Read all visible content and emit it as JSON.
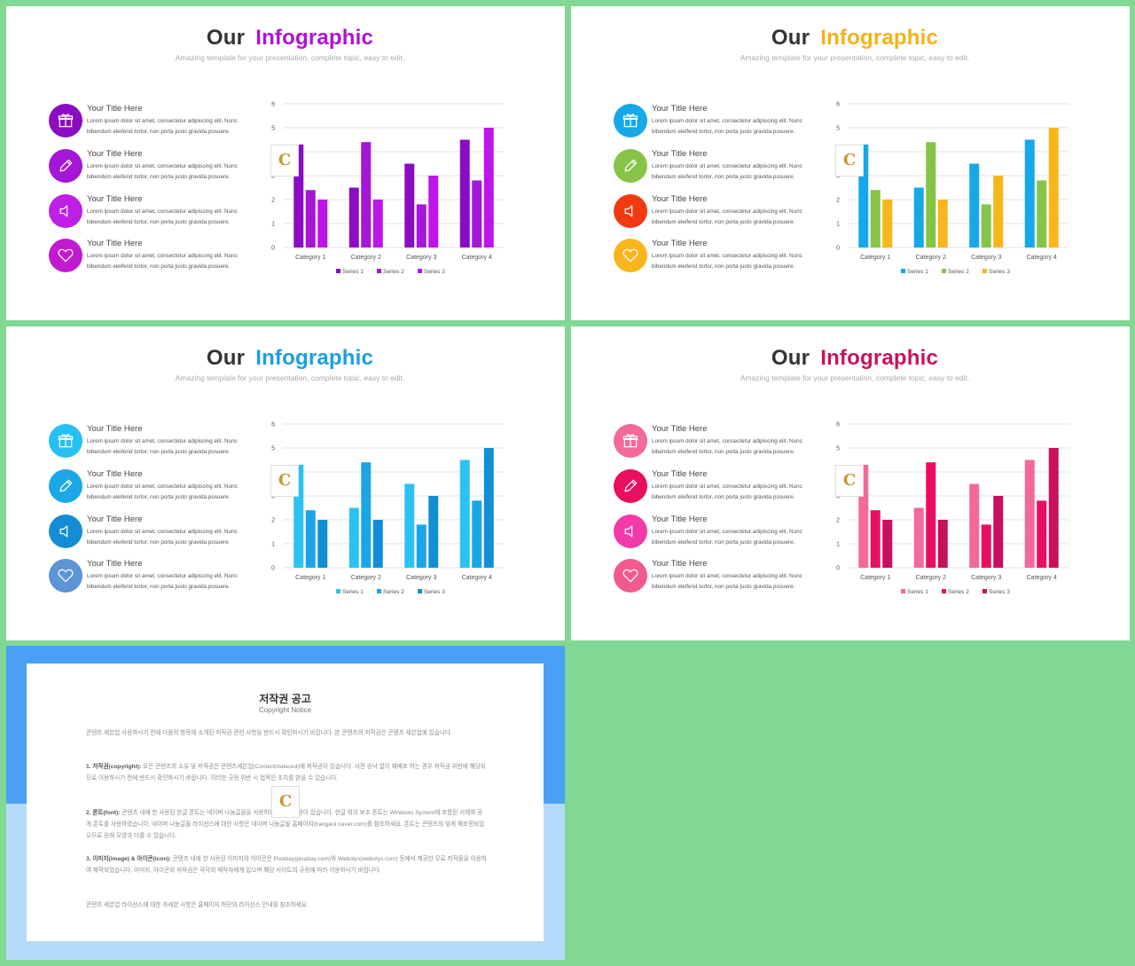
{
  "slides": [
    {
      "title_a": "Our",
      "title_b": "Infographic",
      "subtitle": "Amazing template for your presentation, complete topic, easy to edit.",
      "accent": "#b010d8",
      "icon_colors": [
        "#8a0dc4",
        "#a516d6",
        "#be1ee6",
        "#c21ad0"
      ],
      "series_colors": [
        "#8a0dc4",
        "#a516d6",
        "#bd15ea"
      ],
      "items": [
        {
          "icon": "gift-icon",
          "title": "Your Title Here",
          "body": "Lorem ipsum dolor sit amet, consectetur adipiscing elit. Nunc bibendum eleifend tortor, non porta justo gravida posuere."
        },
        {
          "icon": "pencil-icon",
          "title": "Your Title Here",
          "body": "Lorem ipsum dolor sit amet, consectetur adipiscing elit. Nunc bibendum eleifend tortor, non porta justo gravida posuere."
        },
        {
          "icon": "speaker-icon",
          "title": "Your Title Here",
          "body": "Lorem ipsum dolor sit amet, consectetur adipiscing elit. Nunc bibendum eleifend tortor, non porta justo gravida posuere."
        },
        {
          "icon": "heart-icon",
          "title": "Your Title Here",
          "body": "Lorem ipsum dolor sit amet, consectetur adipiscing elit. Nunc bibendum eleifend tortor, non porta justo gravida posuere."
        }
      ]
    },
    {
      "title_a": "Our",
      "title_b": "Infographic",
      "subtitle": "Amazing template for your presentation, complete topic, easy to edit.",
      "accent": "#f4b21b",
      "icon_colors": [
        "#16a8e8",
        "#86c448",
        "#f23a12",
        "#f9b51c"
      ],
      "series_colors": [
        "#16a8e8",
        "#86c448",
        "#f9b51c"
      ],
      "items": [
        {
          "icon": "gift-icon",
          "title": "Your Title Here",
          "body": "Lorem ipsum dolor sit amet, consectetur adipiscing elit. Nunc bibendum eleifend tortor, non porta justo gravida posuere."
        },
        {
          "icon": "pencil-icon",
          "title": "Your Title Here",
          "body": "Lorem ipsum dolor sit amet, consectetur adipiscing elit. Nunc bibendum eleifend tortor, non porta justo gravida posuere."
        },
        {
          "icon": "speaker-icon",
          "title": "Your Title Here",
          "body": "Lorem ipsum dolor sit amet, consectetur adipiscing elit. Nunc bibendum eleifend tortor, non porta justo gravida posuere."
        },
        {
          "icon": "heart-icon",
          "title": "Your Title Here",
          "body": "Lorem ipsum dolor sit amet, consectetur adipiscing elit. Nunc bibendum eleifend tortor, non porta justo gravida posuere."
        }
      ]
    },
    {
      "title_a": "Our",
      "title_b": "Infographic",
      "subtitle": "Amazing template for your presentation, complete topic, easy to edit.",
      "accent": "#1a9fe0",
      "icon_colors": [
        "#27c0f2",
        "#1ca8e8",
        "#158dd4",
        "#5c94d4"
      ],
      "series_colors": [
        "#2bc2f2",
        "#1aa6e6",
        "#128fd4"
      ],
      "items": [
        {
          "icon": "gift-icon",
          "title": "Your Title Here",
          "body": "Lorem ipsum dolor sit amet, consectetur adipiscing elit. Nunc bibendum eleifend tortor, non porta justo gravida posuere."
        },
        {
          "icon": "pencil-icon",
          "title": "Your Title Here",
          "body": "Lorem ipsum dolor sit amet, consectetur adipiscing elit. Nunc bibendum eleifend tortor, non porta justo gravida posuere."
        },
        {
          "icon": "speaker-icon",
          "title": "Your Title Here",
          "body": "Lorem ipsum dolor sit amet, consectetur adipiscing elit. Nunc bibendum eleifend tortor, non porta justo gravida posuere."
        },
        {
          "icon": "heart-icon",
          "title": "Your Title Here",
          "body": "Lorem ipsum dolor sit amet, consectetur adipiscing elit. Nunc bibendum eleifend tortor, non porta justo gravida posuere."
        }
      ]
    },
    {
      "title_a": "Our",
      "title_b": "Infographic",
      "subtitle": "Amazing template for your presentation, complete topic, easy to edit.",
      "accent": "#c8125e",
      "icon_colors": [
        "#f2699a",
        "#ea0e5e",
        "#f23aa8",
        "#f25a8e"
      ],
      "series_colors": [
        "#f2699a",
        "#ea0e62",
        "#c8105c"
      ],
      "items": [
        {
          "icon": "gift-icon",
          "title": "Your Title Here",
          "body": "Lorem ipsum dolor sit amet, consectetur adipiscing elit. Nunc bibendum eleifend tortor, non porta justo gravida posuere."
        },
        {
          "icon": "pencil-icon",
          "title": "Your Title Here",
          "body": "Lorem ipsum dolor sit amet, consectetur adipiscing elit. Nunc bibendum eleifend tortor, non porta justo gravida posuere."
        },
        {
          "icon": "speaker-icon",
          "title": "Your Title Here",
          "body": "Lorem ipsum dolor sit amet, consectetur adipiscing elit. Nunc bibendum eleifend tortor, non porta justo gravida posuere."
        },
        {
          "icon": "heart-icon",
          "title": "Your Title Here",
          "body": "Lorem ipsum dolor sit amet, consectetur adipiscing elit. Nunc bibendum eleifend tortor, non porta justo gravida posuere."
        }
      ]
    }
  ],
  "chart_data": [
    {
      "type": "bar",
      "categories": [
        "Category 1",
        "Category 2",
        "Category 3",
        "Category 4"
      ],
      "series": [
        {
          "name": "Series 1",
          "values": [
            4.3,
            2.5,
            3.5,
            4.5
          ]
        },
        {
          "name": "Series 2",
          "values": [
            2.4,
            4.4,
            1.8,
            2.8
          ]
        },
        {
          "name": "Series 3",
          "values": [
            2,
            2,
            3,
            5
          ]
        }
      ],
      "ylim": [
        0,
        6
      ],
      "yticks": [
        0,
        1,
        2,
        3,
        4,
        5,
        6
      ],
      "legend": "bottom",
      "grid": true
    },
    {
      "type": "bar",
      "categories": [
        "Category 1",
        "Category 2",
        "Category 3",
        "Category 4"
      ],
      "series": [
        {
          "name": "Series 1",
          "values": [
            4.3,
            2.5,
            3.5,
            4.5
          ]
        },
        {
          "name": "Series 2",
          "values": [
            2.4,
            4.4,
            1.8,
            2.8
          ]
        },
        {
          "name": "Series 3",
          "values": [
            2,
            2,
            3,
            5
          ]
        }
      ],
      "ylim": [
        0,
        6
      ],
      "yticks": [
        0,
        1,
        2,
        3,
        4,
        5,
        6
      ],
      "legend": "bottom",
      "grid": true
    },
    {
      "type": "bar",
      "categories": [
        "Category 1",
        "Category 2",
        "Category 3",
        "Category 4"
      ],
      "series": [
        {
          "name": "Series 1",
          "values": [
            4.3,
            2.5,
            3.5,
            4.5
          ]
        },
        {
          "name": "Series 2",
          "values": [
            2.4,
            4.4,
            1.8,
            2.8
          ]
        },
        {
          "name": "Series 3",
          "values": [
            2,
            2,
            3,
            5
          ]
        }
      ],
      "ylim": [
        0,
        6
      ],
      "yticks": [
        0,
        1,
        2,
        3,
        4,
        5,
        6
      ],
      "legend": "bottom",
      "grid": true
    },
    {
      "type": "bar",
      "categories": [
        "Category 1",
        "Category 2",
        "Category 3",
        "Category 4"
      ],
      "series": [
        {
          "name": "Series 1",
          "values": [
            4.3,
            2.5,
            3.5,
            4.5
          ]
        },
        {
          "name": "Series 2",
          "values": [
            2.4,
            4.4,
            1.8,
            2.8
          ]
        },
        {
          "name": "Series 3",
          "values": [
            2,
            2,
            3,
            5
          ]
        }
      ],
      "ylim": [
        0,
        6
      ],
      "yticks": [
        0,
        1,
        2,
        3,
        4,
        5,
        6
      ],
      "legend": "bottom",
      "grid": true
    }
  ],
  "copyright": {
    "title": "저작권 공고",
    "subtitle": "Copyright Notice",
    "intro": "콘텐츠 세븐업 사용하시기 전에 다음의 항목에 소개된 저작권 관련 사항을 반드시 확인하시기 바랍니다. 본 콘텐츠의 저작권은 콘텐츠 세븐업에 있습니다.",
    "p1_label": "1. 저작권(copyright):",
    "p1": "모든 콘텐츠의 소유 및 저작권은 콘텐츠세븐업(Contentstakeout)에 저작권이 있습니다. 사전 승낙 없이 재배포 하는 경우 저작권 위반에 해당되므로 이용하시기 전에 반드시 확인하시기 바랍니다. 이러한 규정 위반 시 법적인 조치를 받을 수 있습니다.",
    "p2_label": "2. 폰트(font):",
    "p2": "콘텐츠 내에 한 사용된 한글 폰트는 네이버 나눔글꼴을 사용하였으며 저작권이 있습니다. 한글 외의 보조 폰트는 Windows System에 포함된 서체와 공개 폰트를 사용하였습니다. 네이버 나눔글꼴 라이선스에 대한 사항은 네이버 나눔글꼴 홈페이지(hangeul.naver.com)를 참조하세요. 폰트는 콘텐츠의 맞게 재조정되었으므로 원래 모양과 다를 수 있습니다.",
    "p3_label": "3. 이미지(image) & 아이콘(icon):",
    "p3": "콘텐츠 내에 한 사용된 이미지와 아이콘은 Pixabay(pixabay.com)와 Webolys(webolys.com) 등에서 제공한 무료 저작물을 이용하여 제작되었습니다. 이미지, 아이콘의 저작권은 각각의 제작자에게 있으며 해당 사이트의 규정에 따라 이용하시기 바랍니다.",
    "closing": "콘텐츠 세븐업 라이선스에 대한 자세한 사항은 홈페이지 하단의 라이선스 안내를 참조하세요."
  }
}
